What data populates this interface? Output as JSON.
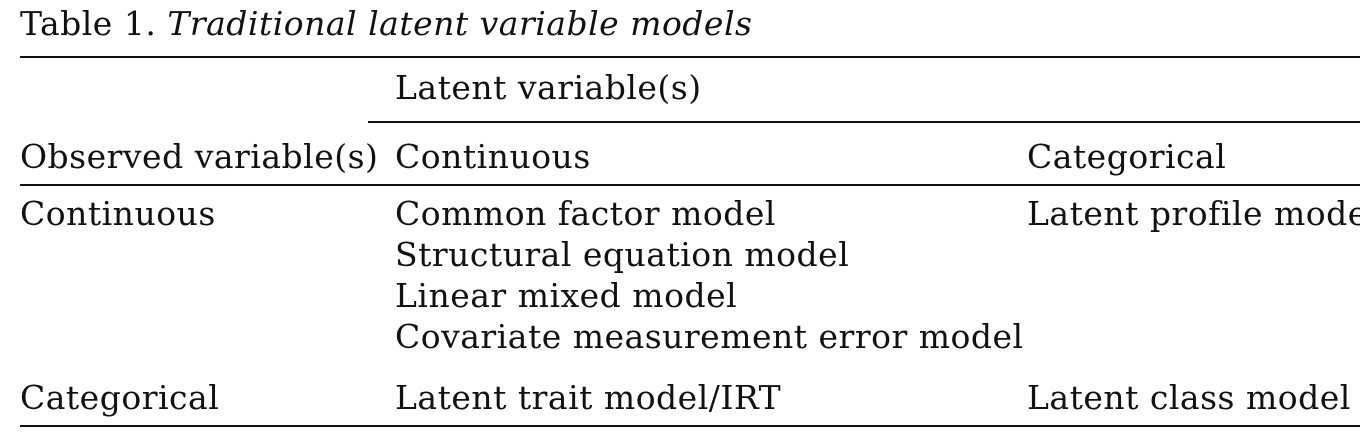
{
  "caption": {
    "label": "Table 1.",
    "title": "Traditional latent variable models"
  },
  "table": {
    "spanner_header": "Latent variable(s)",
    "row_header": "Observed variable(s)",
    "col_headers": [
      "Continuous",
      "Categorical"
    ],
    "rows": [
      {
        "observed": "Continuous",
        "continuous": [
          "Common factor model",
          "Structural equation model",
          "Linear mixed model",
          "Covariate measurement error model"
        ],
        "categorical": "Latent profile model"
      },
      {
        "observed": "Categorical",
        "continuous": [
          "Latent trait model/IRT"
        ],
        "categorical": "Latent class model"
      }
    ]
  }
}
